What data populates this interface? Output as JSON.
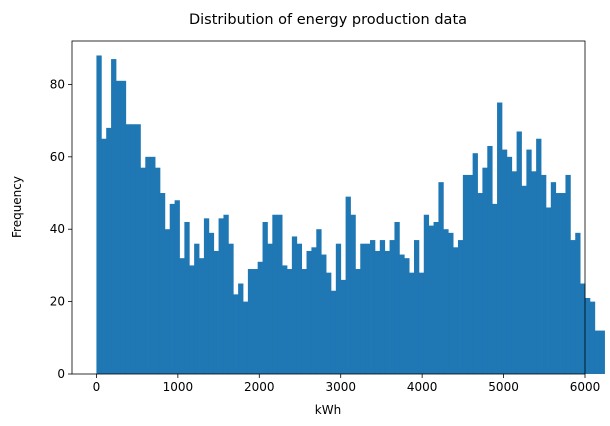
{
  "chart_data": {
    "type": "bar",
    "title": "Distribution of energy production data",
    "xlabel": "kWh",
    "ylabel": "Frequency",
    "xlim": [
      -300,
      6000
    ],
    "ylim": [
      0,
      92
    ],
    "xticks": [
      0,
      1000,
      2000,
      3000,
      4000,
      5000,
      6000
    ],
    "yticks": [
      0,
      20,
      40,
      60,
      80
    ],
    "bin_start": 0,
    "bin_width": 60,
    "bar_color": "#1f77b4",
    "grid": false,
    "values": [
      88,
      65,
      68,
      87,
      81,
      81,
      69,
      69,
      69,
      57,
      60,
      60,
      57,
      50,
      40,
      47,
      48,
      32,
      42,
      30,
      36,
      32,
      43,
      39,
      34,
      43,
      44,
      36,
      22,
      25,
      20,
      29,
      29,
      31,
      42,
      36,
      44,
      44,
      30,
      29,
      38,
      36,
      29,
      34,
      35,
      40,
      33,
      28,
      23,
      36,
      26,
      49,
      44,
      29,
      36,
      36,
      37,
      34,
      37,
      34,
      37,
      42,
      33,
      32,
      28,
      37,
      28,
      44,
      41,
      42,
      53,
      40,
      39,
      35,
      37,
      55,
      55,
      61,
      50,
      57,
      63,
      47,
      75,
      62,
      60,
      56,
      67,
      52,
      62,
      56,
      65,
      55,
      46,
      53,
      50,
      50,
      55,
      37,
      39,
      25,
      21,
      20,
      12,
      12
    ]
  }
}
